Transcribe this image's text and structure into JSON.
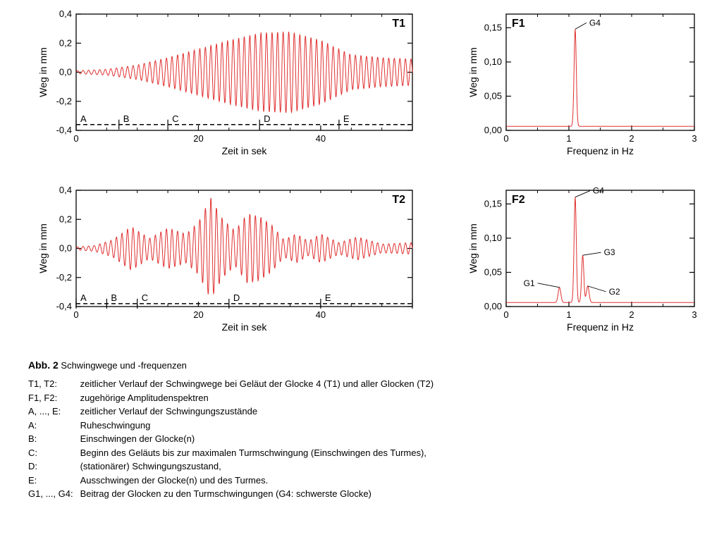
{
  "global": {
    "line_color": "#e03030",
    "axis_color": "#000000",
    "tick_color": "#000000",
    "bg_color": "#ffffff",
    "font_family": "Arial",
    "dash_line": {
      "color": "#000000",
      "width": 1.4,
      "dash": "6 4"
    }
  },
  "T1": {
    "label": "T1",
    "xaxis": {
      "label": "Zeit in sek",
      "min": 0,
      "max": 55,
      "ticks": [
        0,
        20,
        40
      ],
      "minor_step": 5
    },
    "yaxis": {
      "label": "Weg in mm",
      "min": -0.4,
      "max": 0.4,
      "ticks": [
        -0.4,
        -0.2,
        0.0,
        0.2,
        0.4
      ],
      "tick_format_comma": true
    },
    "osc": {
      "freq_hz": 1.1,
      "env_type": "bell-growth",
      "envelope": [
        {
          "t": 0,
          "a": 0.01
        },
        {
          "t": 5,
          "a": 0.02
        },
        {
          "t": 10,
          "a": 0.05
        },
        {
          "t": 15,
          "a": 0.1
        },
        {
          "t": 20,
          "a": 0.16
        },
        {
          "t": 25,
          "a": 0.22
        },
        {
          "t": 30,
          "a": 0.27
        },
        {
          "t": 35,
          "a": 0.28
        },
        {
          "t": 40,
          "a": 0.22
        },
        {
          "t": 45,
          "a": 0.12
        },
        {
          "t": 50,
          "a": 0.1
        },
        {
          "t": 55,
          "a": 0.09
        }
      ]
    },
    "segments": {
      "y": -0.36,
      "labels": [
        "A",
        "B",
        "C",
        "D",
        "E"
      ],
      "bounds": [
        0,
        7,
        15,
        30,
        43,
        55
      ]
    },
    "line_width": 1.0
  },
  "T2": {
    "label": "T2",
    "xaxis": {
      "label": "Zeit in sek",
      "min": 0,
      "max": 55,
      "ticks": [
        0,
        20,
        40
      ],
      "minor_step": 5
    },
    "yaxis": {
      "label": "Weg in mm",
      "min": -0.4,
      "max": 0.4,
      "ticks": [
        -0.4,
        -0.2,
        0.0,
        0.2,
        0.4
      ],
      "tick_format_comma": true
    },
    "osc": {
      "freq_hz": 1.1,
      "env_type": "multi-beat",
      "envelope": [
        {
          "t": 0,
          "a": 0.01
        },
        {
          "t": 3,
          "a": 0.02
        },
        {
          "t": 6,
          "a": 0.06
        },
        {
          "t": 9,
          "a": 0.15
        },
        {
          "t": 12,
          "a": 0.07
        },
        {
          "t": 15,
          "a": 0.14
        },
        {
          "t": 18,
          "a": 0.1
        },
        {
          "t": 20,
          "a": 0.18
        },
        {
          "t": 22,
          "a": 0.35
        },
        {
          "t": 24,
          "a": 0.2
        },
        {
          "t": 26,
          "a": 0.12
        },
        {
          "t": 28,
          "a": 0.24
        },
        {
          "t": 30,
          "a": 0.22
        },
        {
          "t": 32,
          "a": 0.16
        },
        {
          "t": 34,
          "a": 0.06
        },
        {
          "t": 36,
          "a": 0.1
        },
        {
          "t": 38,
          "a": 0.05
        },
        {
          "t": 40,
          "a": 0.1
        },
        {
          "t": 43,
          "a": 0.04
        },
        {
          "t": 46,
          "a": 0.08
        },
        {
          "t": 50,
          "a": 0.03
        },
        {
          "t": 55,
          "a": 0.04
        }
      ]
    },
    "segments": {
      "y": -0.38,
      "labels": [
        "A",
        "B",
        "C",
        "D",
        "E"
      ],
      "bounds": [
        0,
        5,
        10,
        25,
        40,
        55
      ]
    },
    "line_width": 1.0
  },
  "F1": {
    "label": "F1",
    "xaxis": {
      "label": "Frequenz in Hz",
      "min": 0,
      "max": 3,
      "ticks": [
        0,
        1,
        2,
        3
      ],
      "minor_step": 0.5
    },
    "yaxis": {
      "label": "Weg in mm",
      "min": 0,
      "max": 0.17,
      "ticks": [
        0.0,
        0.05,
        0.1,
        0.15
      ],
      "tick_format_comma": true
    },
    "spectrum": {
      "baseline": 0.006,
      "peaks": [
        {
          "name": "G4",
          "f": 1.1,
          "h": 0.148,
          "w": 0.05,
          "label_dx": 20,
          "label_dy": -5,
          "leader": true
        }
      ]
    },
    "line_width": 1.0
  },
  "F2": {
    "label": "F2",
    "xaxis": {
      "label": "Frequenz in Hz",
      "min": 0,
      "max": 3,
      "ticks": [
        0,
        1,
        2,
        3
      ],
      "minor_step": 0.5
    },
    "yaxis": {
      "label": "Weg in mm",
      "min": 0,
      "max": 0.17,
      "ticks": [
        0.0,
        0.05,
        0.1,
        0.15
      ],
      "tick_format_comma": true
    },
    "spectrum": {
      "baseline": 0.006,
      "peaks": [
        {
          "name": "G1",
          "f": 0.85,
          "h": 0.028,
          "w": 0.06,
          "label_dx": -35,
          "label_dy": -2,
          "leader": true
        },
        {
          "name": "G4",
          "f": 1.1,
          "h": 0.16,
          "w": 0.05,
          "label_dx": 25,
          "label_dy": -5,
          "leader": true
        },
        {
          "name": "G3",
          "f": 1.22,
          "h": 0.075,
          "w": 0.05,
          "label_dx": 30,
          "label_dy": 0,
          "leader": true
        },
        {
          "name": "G2",
          "f": 1.3,
          "h": 0.03,
          "w": 0.06,
          "label_dx": 30,
          "label_dy": 12,
          "leader": true
        }
      ]
    },
    "line_width": 1.0
  },
  "caption": {
    "title_bold": "Abb. 2",
    "title_rest": "Schwingwege und -frequenzen",
    "rows": [
      {
        "key": "T1, T2:",
        "text": "zeitlicher Verlauf der Schwingwege bei Geläut der Glocke 4 (T1) und aller Glocken (T2)"
      },
      {
        "key": "F1, F2:",
        "text": "zugehörige Amplitudenspektren"
      },
      {
        "key": "A, ..., E:",
        "text": "zeitlicher Verlauf der Schwingungszustände"
      },
      {
        "key": "A:",
        "text": "Ruheschwingung"
      },
      {
        "key": "B:",
        "text": "Einschwingen der Glocke(n)"
      },
      {
        "key": "C:",
        "text": "Beginn des Geläuts bis zur maximalen Turmschwingung (Einschwingen des Turmes),"
      },
      {
        "key": "D:",
        "text": "(stationärer) Schwingungszustand,"
      },
      {
        "key": "E:",
        "text": "Ausschwingen der Glocke(n) und des Turmes."
      },
      {
        "key": "G1, ..., G4:",
        "text": "Beitrag der Glocken zu den Turmschwingungen (G4: schwerste Glocke)"
      }
    ]
  }
}
